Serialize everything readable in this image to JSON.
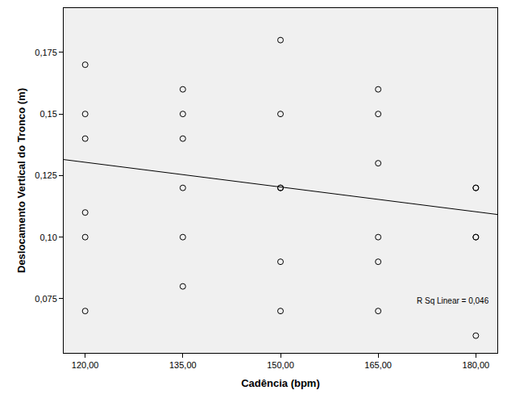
{
  "chart_data": {
    "type": "scatter",
    "x_label": "Cadência (bpm)",
    "y_label": "Deslocamento Vertical do Tronco (m)",
    "x": [
      120,
      120,
      120,
      120,
      120,
      120,
      135,
      135,
      135,
      135,
      135,
      135,
      150,
      150,
      150,
      150,
      150,
      150,
      165,
      165,
      165,
      165,
      165,
      165,
      180,
      180,
      180,
      180,
      180
    ],
    "values": [
      0.17,
      0.15,
      0.14,
      0.11,
      0.1,
      0.07,
      0.16,
      0.15,
      0.14,
      0.12,
      0.1,
      0.08,
      0.18,
      0.15,
      0.12,
      0.12,
      0.09,
      0.07,
      0.16,
      0.15,
      0.13,
      0.1,
      0.09,
      0.07,
      0.12,
      0.12,
      0.1,
      0.1,
      0.06
    ],
    "color": "#000000",
    "marker": "circle-open",
    "fit_line": {
      "x": [
        116.7,
        183.3
      ],
      "y": [
        0.1315,
        0.1092
      ],
      "color": "#000000"
    },
    "annotations": [
      {
        "text": "R Sq Linear = 0,046"
      }
    ],
    "xlim": [
      116.7,
      183.3
    ],
    "ylim": [
      0.053,
      0.193
    ],
    "xticks": [
      {
        "value": 120,
        "label": "120,00"
      },
      {
        "value": 135,
        "label": "135,00"
      },
      {
        "value": 150,
        "label": "150,00"
      },
      {
        "value": 165,
        "label": "165,00"
      },
      {
        "value": 180,
        "label": "180,00"
      }
    ],
    "yticks": [
      {
        "value": 0.075,
        "label": "0,075"
      },
      {
        "value": 0.1,
        "label": "0,10"
      },
      {
        "value": 0.125,
        "label": "0,125"
      },
      {
        "value": 0.15,
        "label": "0,15"
      },
      {
        "value": 0.175,
        "label": "0,175"
      }
    ],
    "grid": false
  }
}
